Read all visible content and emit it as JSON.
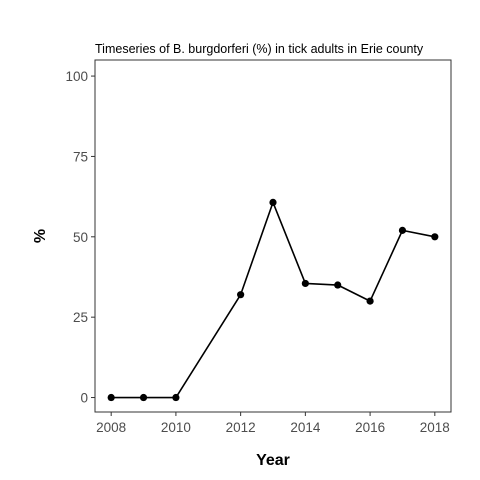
{
  "chart_data": {
    "type": "line",
    "title": "Timeseries of B. burgdorferi (%) in tick adults in Erie county",
    "xlabel": "Year",
    "ylabel": "%",
    "x": [
      2008,
      2009,
      2010,
      2012,
      2013,
      2014,
      2015,
      2016,
      2017,
      2018
    ],
    "series": [
      {
        "values": [
          0,
          0,
          0,
          32,
          60.7,
          35.5,
          35,
          30,
          52,
          50
        ]
      }
    ],
    "xlim": [
      2007.5,
      2018.5
    ],
    "ylim": [
      -4.5,
      105
    ],
    "xticks": [
      2008,
      2010,
      2012,
      2014,
      2016,
      2018
    ],
    "yticks": [
      0,
      25,
      50,
      75,
      100
    ],
    "grid": false,
    "line_color": "#000000"
  }
}
